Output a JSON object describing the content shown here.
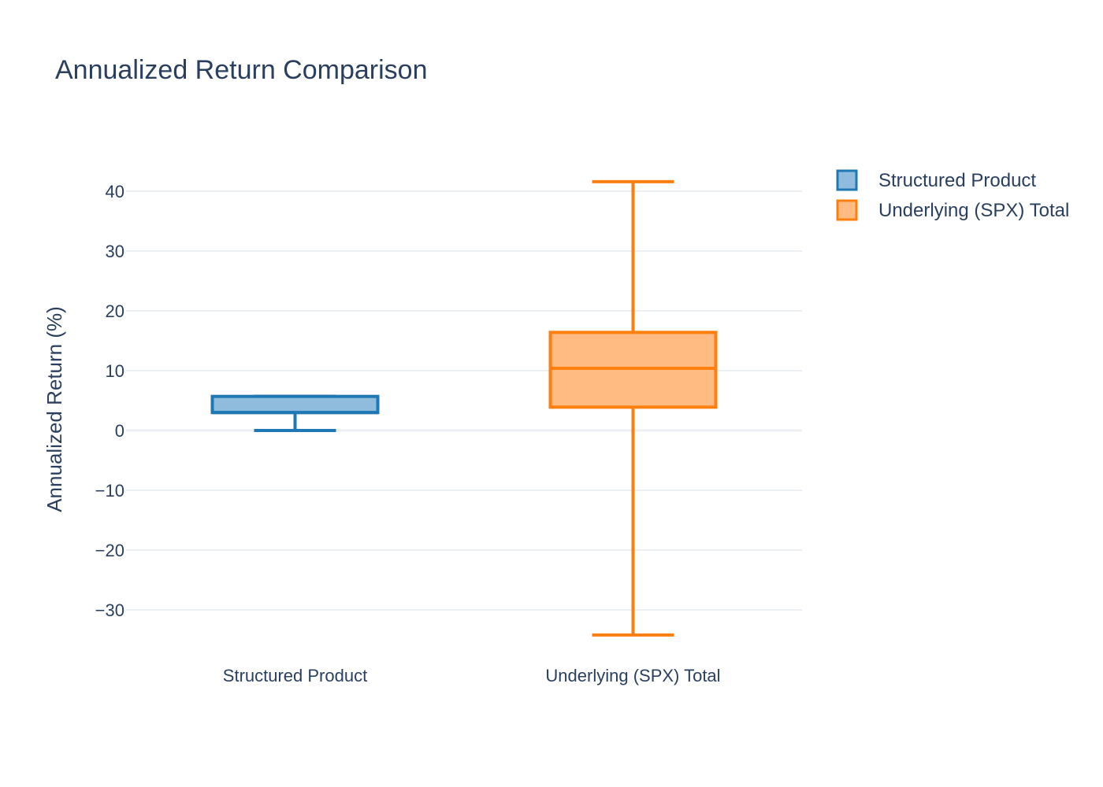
{
  "chart_data": {
    "type": "box",
    "title": "Annualized Return Comparison",
    "ylabel": "Annualized Return (%)",
    "xlabel": "",
    "ylim": [
      -36,
      45
    ],
    "yticks": [
      40,
      30,
      20,
      10,
      0,
      -10,
      -20,
      -30
    ],
    "ytick_labels": [
      "40",
      "30",
      "20",
      "10",
      "0",
      "−10",
      "−20",
      "−30"
    ],
    "grid": true,
    "legend_position": "top-right",
    "series": [
      {
        "name": "Structured Product",
        "category": "Structured Product",
        "min": 0,
        "q1": 3,
        "median": 3,
        "q3": 5.7,
        "max": 5.7,
        "color": "#1f77b4",
        "fill": "#8fbbdc"
      },
      {
        "name": "Underlying (SPX) Total",
        "category": "Underlying (SPX) Total",
        "min": -34.2,
        "q1": 3.9,
        "median": 10.4,
        "q3": 16.4,
        "max": 41.6,
        "color": "#ff7f0e",
        "fill": "#ffbb82"
      }
    ]
  }
}
